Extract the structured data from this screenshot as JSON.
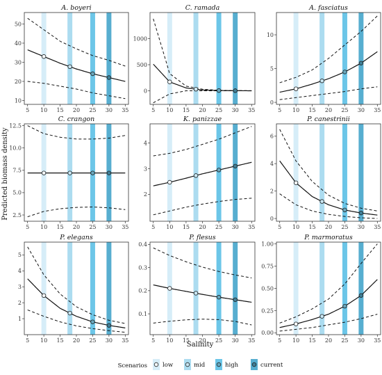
{
  "figure": {
    "xlabel": "Salinity",
    "ylabel": "Predicted biomass density",
    "legend_title": "Scenarios"
  },
  "scenarios": [
    {
      "name": "low",
      "salinity": 10,
      "color": "#d6edf8",
      "dot_fill": "#f4f9fc"
    },
    {
      "name": "mid",
      "salinity": 18,
      "color": "#acdcf0",
      "dot_fill": "#c9e7f3"
    },
    {
      "name": "high",
      "salinity": 25,
      "color": "#6cc6e8",
      "dot_fill": "#69a8be"
    },
    {
      "name": "current",
      "salinity": 30,
      "color": "#57aed0",
      "dot_fill": "#3f7f97"
    }
  ],
  "chart_data": [
    {
      "type": "line",
      "title": "A. boyeri",
      "xlim": [
        4,
        36
      ],
      "ylim": [
        8,
        56
      ],
      "xticks": [
        5,
        10,
        15,
        20,
        25,
        30,
        35
      ],
      "yticks": [
        10,
        20,
        30,
        40,
        50
      ],
      "x": [
        5,
        10,
        15,
        20,
        25,
        30,
        35
      ],
      "fit": [
        36.5,
        33,
        29.5,
        26.5,
        24,
        22,
        20
      ],
      "lower": [
        20,
        19,
        17.5,
        16,
        14,
        12.5,
        11
      ],
      "upper": [
        53,
        47,
        41,
        37,
        33.5,
        31,
        28
      ]
    },
    {
      "type": "line",
      "title": "C. ramada",
      "xlim": [
        4,
        36
      ],
      "ylim": [
        -260,
        1500
      ],
      "xticks": [
        5,
        10,
        15,
        20,
        25,
        30,
        35
      ],
      "yticks": [
        0,
        500,
        1000
      ],
      "x": [
        5,
        10,
        15,
        20,
        25,
        30,
        35
      ],
      "fit": [
        510,
        170,
        55,
        15,
        5,
        2,
        0
      ],
      "lower": [
        -230,
        -60,
        0,
        0,
        0,
        0,
        0
      ],
      "upper": [
        1380,
        330,
        90,
        30,
        10,
        4,
        2
      ]
    },
    {
      "type": "line",
      "title": "A. fasciatus",
      "xlim": [
        4,
        36
      ],
      "ylim": [
        -0.3,
        13.3
      ],
      "xticks": [
        5,
        10,
        15,
        20,
        25,
        30,
        35
      ],
      "yticks": [
        0,
        5,
        10
      ],
      "x": [
        5,
        10,
        15,
        20,
        25,
        30,
        35
      ],
      "fit": [
        1.5,
        2.0,
        2.7,
        3.5,
        4.5,
        5.8,
        7.5
      ],
      "lower": [
        0.4,
        0.7,
        1.0,
        1.3,
        1.6,
        2.0,
        2.3
      ],
      "upper": [
        2.9,
        3.7,
        4.8,
        6.5,
        8.5,
        10.5,
        12.8
      ]
    },
    {
      "type": "line",
      "title": "C. crangon",
      "xlim": [
        4,
        36
      ],
      "ylim": [
        1.8,
        12.7
      ],
      "xticks": [
        5,
        10,
        15,
        20,
        25,
        30,
        35
      ],
      "yticks": [
        2.5,
        5.0,
        7.5,
        10.0,
        12.5
      ],
      "x": [
        5,
        10,
        15,
        20,
        25,
        30,
        35
      ],
      "fit": [
        7.2,
        7.2,
        7.2,
        7.2,
        7.2,
        7.2,
        7.2
      ],
      "lower": [
        2.3,
        2.9,
        3.2,
        3.35,
        3.4,
        3.3,
        3.1
      ],
      "upper": [
        12.5,
        11.6,
        11.2,
        11.0,
        11.0,
        11.1,
        11.4
      ]
    },
    {
      "type": "line",
      "title": "K. panizzae",
      "xlim": [
        4,
        36
      ],
      "ylim": [
        0.95,
        4.75
      ],
      "xticks": [
        5,
        10,
        15,
        20,
        25,
        30,
        35
      ],
      "yticks": [
        2,
        3,
        4
      ],
      "x": [
        5,
        10,
        15,
        20,
        25,
        30,
        35
      ],
      "fit": [
        2.33,
        2.47,
        2.63,
        2.8,
        2.95,
        3.1,
        3.25
      ],
      "lower": [
        1.2,
        1.35,
        1.5,
        1.62,
        1.72,
        1.8,
        1.85
      ],
      "upper": [
        3.5,
        3.6,
        3.75,
        3.95,
        4.15,
        4.4,
        4.65
      ]
    },
    {
      "type": "line",
      "title": "P. canestrinii",
      "xlim": [
        4,
        36
      ],
      "ylim": [
        -0.2,
        6.9
      ],
      "xticks": [
        5,
        10,
        15,
        20,
        25,
        30,
        35
      ],
      "yticks": [
        0,
        2,
        4,
        6
      ],
      "x": [
        5,
        10,
        15,
        20,
        25,
        30,
        35
      ],
      "fit": [
        4.2,
        2.6,
        1.6,
        1.0,
        0.62,
        0.4,
        0.25
      ],
      "lower": [
        1.8,
        1.0,
        0.55,
        0.3,
        0.15,
        0.05,
        0.0
      ],
      "upper": [
        6.5,
        4.2,
        2.7,
        1.7,
        1.1,
        0.75,
        0.55
      ]
    },
    {
      "type": "line",
      "title": "P. elegans",
      "xlim": [
        4,
        36
      ],
      "ylim": [
        0,
        5.8
      ],
      "xticks": [
        5,
        10,
        15,
        20,
        25,
        30,
        35
      ],
      "yticks": [
        1,
        2,
        3,
        4,
        5
      ],
      "x": [
        5,
        10,
        15,
        20,
        25,
        30,
        35
      ],
      "fit": [
        3.5,
        2.45,
        1.65,
        1.15,
        0.8,
        0.58,
        0.42
      ],
      "lower": [
        1.55,
        1.15,
        0.8,
        0.55,
        0.38,
        0.25,
        0.15
      ],
      "upper": [
        5.5,
        3.75,
        2.55,
        1.75,
        1.25,
        0.9,
        0.7
      ]
    },
    {
      "type": "line",
      "title": "P. flesus",
      "xlim": [
        4,
        36
      ],
      "ylim": [
        0.01,
        0.41
      ],
      "xticks": [
        5,
        10,
        15,
        20,
        25,
        30,
        35
      ],
      "yticks": [
        0.1,
        0.2,
        0.3,
        0.4
      ],
      "x": [
        5,
        10,
        15,
        20,
        25,
        30,
        35
      ],
      "fit": [
        0.225,
        0.21,
        0.197,
        0.184,
        0.172,
        0.161,
        0.15
      ],
      "lower": [
        0.06,
        0.068,
        0.074,
        0.077,
        0.075,
        0.067,
        0.052
      ],
      "upper": [
        0.385,
        0.352,
        0.325,
        0.302,
        0.283,
        0.268,
        0.255
      ]
    },
    {
      "type": "line",
      "title": "P. marmoratus",
      "xlim": [
        4,
        36
      ],
      "ylim": [
        -0.02,
        1.02
      ],
      "xticks": [
        5,
        10,
        15,
        20,
        25,
        30,
        35
      ],
      "yticks": [
        0.0,
        0.25,
        0.5,
        0.75,
        1.0
      ],
      "ytick_labels": [
        "0.00",
        "0.25",
        "0.50",
        "0.75",
        "1.00"
      ],
      "x": [
        5,
        10,
        15,
        20,
        25,
        30,
        35
      ],
      "fit": [
        0.06,
        0.1,
        0.15,
        0.21,
        0.3,
        0.42,
        0.6
      ],
      "lower": [
        0.02,
        0.04,
        0.06,
        0.09,
        0.12,
        0.16,
        0.21
      ],
      "upper": [
        0.11,
        0.18,
        0.27,
        0.38,
        0.55,
        0.78,
        1.0
      ]
    }
  ]
}
